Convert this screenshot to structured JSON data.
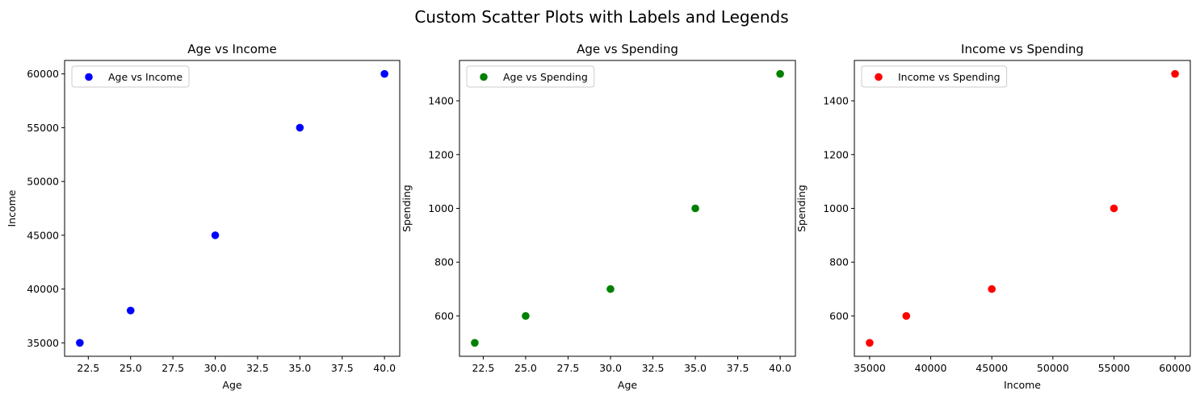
{
  "figure": {
    "suptitle": "Custom Scatter Plots with Labels and Legends"
  },
  "chart_data": [
    {
      "type": "scatter",
      "title": "Age vs Income",
      "xlabel": "Age",
      "ylabel": "Income",
      "xlim": [
        21.1,
        40.9
      ],
      "ylim": [
        33750,
        61250
      ],
      "xticks": [
        22.5,
        25.0,
        27.5,
        30.0,
        32.5,
        35.0,
        37.5,
        40.0
      ],
      "xtick_labels": [
        "22.5",
        "25.0",
        "27.5",
        "30.0",
        "32.5",
        "35.0",
        "37.5",
        "40.0"
      ],
      "yticks": [
        35000,
        40000,
        45000,
        50000,
        55000,
        60000
      ],
      "ytick_labels": [
        "35000",
        "40000",
        "45000",
        "50000",
        "55000",
        "60000"
      ],
      "grid": false,
      "legend_position": "upper-left",
      "series": [
        {
          "name": "Age vs Income",
          "color": "#0000ff",
          "x": [
            22,
            25,
            30,
            35,
            40
          ],
          "y": [
            35000,
            38000,
            45000,
            55000,
            60000
          ]
        }
      ]
    },
    {
      "type": "scatter",
      "title": "Age vs Spending",
      "xlabel": "Age",
      "ylabel": "Spending",
      "xlim": [
        21.1,
        40.9
      ],
      "ylim": [
        450,
        1550
      ],
      "xticks": [
        22.5,
        25.0,
        27.5,
        30.0,
        32.5,
        35.0,
        37.5,
        40.0
      ],
      "xtick_labels": [
        "22.5",
        "25.0",
        "27.5",
        "30.0",
        "32.5",
        "35.0",
        "37.5",
        "40.0"
      ],
      "yticks": [
        600,
        800,
        1000,
        1200,
        1400
      ],
      "ytick_labels": [
        "600",
        "800",
        "1000",
        "1200",
        "1400"
      ],
      "grid": false,
      "legend_position": "upper-left",
      "series": [
        {
          "name": "Age vs Spending",
          "color": "#008000",
          "x": [
            22,
            25,
            30,
            35,
            40
          ],
          "y": [
            500,
            600,
            700,
            1000,
            1500
          ]
        }
      ]
    },
    {
      "type": "scatter",
      "title": "Income vs Spending",
      "xlabel": "Income",
      "ylabel": "Spending",
      "xlim": [
        33750,
        61250
      ],
      "ylim": [
        450,
        1550
      ],
      "xticks": [
        35000,
        40000,
        45000,
        50000,
        55000,
        60000
      ],
      "xtick_labels": [
        "35000",
        "40000",
        "45000",
        "50000",
        "55000",
        "60000"
      ],
      "yticks": [
        600,
        800,
        1000,
        1200,
        1400
      ],
      "ytick_labels": [
        "600",
        "800",
        "1000",
        "1200",
        "1400"
      ],
      "grid": false,
      "legend_position": "upper-left",
      "series": [
        {
          "name": "Income vs Spending",
          "color": "#ff0000",
          "x": [
            35000,
            38000,
            45000,
            55000,
            60000
          ],
          "y": [
            500,
            600,
            700,
            1000,
            1500
          ]
        }
      ]
    }
  ]
}
